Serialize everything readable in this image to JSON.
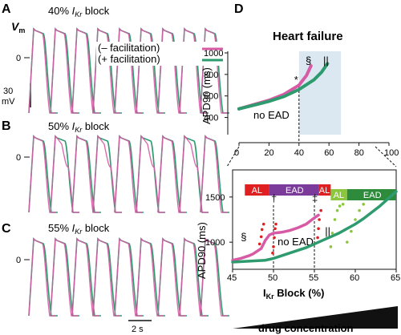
{
  "colors": {
    "no_facilitation": "#d75aa5",
    "facilitation": "#2e9b6f",
    "red": "#e02020",
    "light_green": "#8cc63e",
    "purple": "#7a3b9a",
    "dark_green": "#2e8b3c",
    "shade": "#dbe7f1"
  },
  "panels": {
    "A": "A",
    "B": "B",
    "C": "C",
    "D": "D"
  },
  "left": {
    "vm_label": "V",
    "vm_sub": "m",
    "zero_label": "0",
    "scale_v": "30",
    "scale_unit": "mV",
    "scale_time": "2 s",
    "traces": [
      {
        "label_pre": "40% ",
        "label_i": "I",
        "label_sub": "Kr",
        "label_post": " block"
      },
      {
        "label_pre": "50% ",
        "label_i": "I",
        "label_sub": "Kr",
        "label_post": " block"
      },
      {
        "label_pre": "55% ",
        "label_i": "I",
        "label_sub": "Kr",
        "label_post": " block"
      }
    ],
    "legend": [
      {
        "text": "(– facilitation)",
        "color_key": "no_facilitation"
      },
      {
        "text": "(+ facilitation)",
        "color_key": "facilitation"
      }
    ]
  },
  "chart_data": [
    {
      "type": "line",
      "title": "Heart failure",
      "xlabel": "",
      "ylabel": "APD90 (ms)",
      "xlim": [
        0,
        100
      ],
      "ylim": [
        300,
        1000
      ],
      "xticks": [
        "0",
        "20",
        "40",
        "60",
        "80",
        "100"
      ],
      "yticks": [
        "400",
        "600",
        "800",
        "1000"
      ],
      "shaded_region": [
        40,
        68
      ],
      "dashed_marker_x": 40,
      "annotations": {
        "star": "*",
        "no_ead": "no EAD",
        "section": "§",
        "parallel": "||"
      },
      "series": [
        {
          "name": "– facilitation",
          "x": [
            0,
            10,
            20,
            30,
            40,
            45,
            48
          ],
          "y": [
            480,
            520,
            560,
            615,
            700,
            790,
            880
          ]
        },
        {
          "name": "+ facilitation",
          "x": [
            0,
            10,
            20,
            30,
            40,
            50,
            55,
            59
          ],
          "y": [
            480,
            515,
            550,
            595,
            660,
            750,
            820,
            900
          ]
        }
      ]
    },
    {
      "type": "scatter",
      "title": "",
      "xlabel": "IKr Block (%)",
      "ylabel": "APD90 (ms)",
      "xlim": [
        45,
        65
      ],
      "ylim": [
        700,
        1800
      ],
      "xticks": [
        "45",
        "50",
        "55",
        "60",
        "65"
      ],
      "yticks": [
        "1000",
        "1500"
      ],
      "dashed_markers": [
        50,
        55
      ],
      "marker_symbols": {
        "dagger": "†",
        "ddagger": "‡",
        "section": "§",
        "parallel": "||",
        "no_ead": "no EAD"
      },
      "bars": [
        {
          "label": "AL",
          "from": 46.5,
          "to": 49.5,
          "color_key": "red"
        },
        {
          "label": "EAD",
          "from": 49.5,
          "to": 55.5,
          "color_key": "purple"
        },
        {
          "label": "AL",
          "from": 55.5,
          "to": 57.0,
          "color_key": "red"
        },
        {
          "label": "AL",
          "from": 57.0,
          "to": 59.0,
          "color_key": "light_green"
        },
        {
          "label": "EAD",
          "from": 59.0,
          "to": 65.0,
          "color_key": "dark_green"
        }
      ],
      "series": [
        {
          "name": "– facilitation",
          "x": [
            45,
            46,
            47,
            47.5,
            48,
            48.5,
            49,
            49.5,
            50,
            51,
            52,
            53,
            54,
            55,
            55.5
          ],
          "y": [
            800,
            820,
            850,
            870,
            900,
            930,
            1020,
            1080,
            1100,
            1110,
            1130,
            1160,
            1200,
            1270,
            1300
          ]
        },
        {
          "name": "+ facilitation",
          "x": [
            45,
            47,
            49,
            50,
            51,
            52,
            53,
            54,
            55,
            56,
            57,
            58,
            59,
            60,
            61,
            62,
            63,
            64,
            65
          ],
          "y": [
            780,
            790,
            800,
            820,
            850,
            880,
            910,
            940,
            980,
            1020,
            1060,
            1100,
            1150,
            1200,
            1260,
            1330,
            1400,
            1480,
            1560
          ]
        }
      ]
    }
  ],
  "bottom": {
    "drug_label": "drug concentration",
    "xaxis_label_main": "I",
    "xaxis_label_sub": "Kr",
    "xaxis_label_post": " Block (%)"
  }
}
